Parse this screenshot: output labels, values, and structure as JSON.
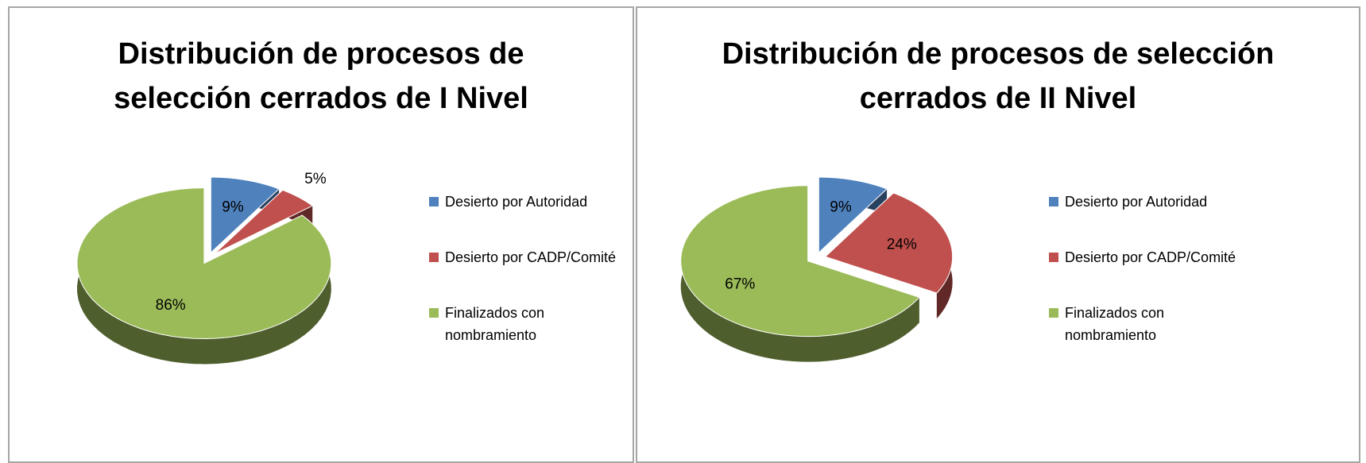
{
  "chart_data": [
    {
      "type": "pie",
      "title": "Distribución de procesos de selección cerrados de I Nivel",
      "categories": [
        "Desierto por Autoridad",
        "Desierto por CADP/Comité",
        "Finalizados con nombramiento"
      ],
      "values": [
        9,
        5,
        86
      ],
      "value_labels": [
        "9%",
        "5%",
        "86%"
      ],
      "colors": [
        "#4f81bd",
        "#c0504d",
        "#9bbb59"
      ],
      "legend": "right"
    },
    {
      "type": "pie",
      "title": "Distribución de procesos de selección cerrados de II Nivel",
      "categories": [
        "Desierto por Autoridad",
        "Desierto por CADP/Comité",
        "Finalizados con nombramiento"
      ],
      "values": [
        9,
        24,
        67
      ],
      "value_labels": [
        "9%",
        "24%",
        "67%"
      ],
      "colors": [
        "#4f81bd",
        "#c0504d",
        "#9bbb59"
      ],
      "legend": "right"
    }
  ]
}
